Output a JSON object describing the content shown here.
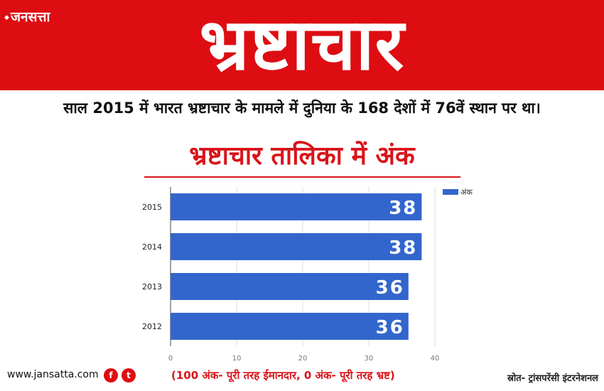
{
  "header": {
    "logo": "जनसत्ता",
    "title": "भ्रष्टाचार"
  },
  "subtitle": "साल 2015 में भारत भ्रष्टाचार के मामले में दुनिया के 168 देशों में 76वें स्थान पर था।",
  "heading": "भ्रष्टाचार तालिका में अंक",
  "colors": {
    "banner": "#dd0d12",
    "heading": "#d8141a",
    "bar": "#3366cc"
  },
  "chart_data": {
    "type": "bar",
    "orientation": "horizontal",
    "categories": [
      "2015",
      "2014",
      "2013",
      "2012"
    ],
    "series": [
      {
        "name": "अंक",
        "values": [
          38,
          38,
          36,
          36
        ]
      }
    ],
    "xlim": [
      0,
      40
    ],
    "xticks": [
      0,
      10,
      20,
      30,
      40
    ],
    "grid": true,
    "legend": "top-right"
  },
  "footer": {
    "site": "www.jansatta.com",
    "facebook_icon": "facebook-icon",
    "twitter_icon": "twitter-icon",
    "note": "(100 अंक- पूरी तरह ईमानदार, 0 अंक- पूरी तरह भ्रष्ट)",
    "source": "स्रोत- ट्रांसपरेंसी इंटरनेशनल"
  }
}
